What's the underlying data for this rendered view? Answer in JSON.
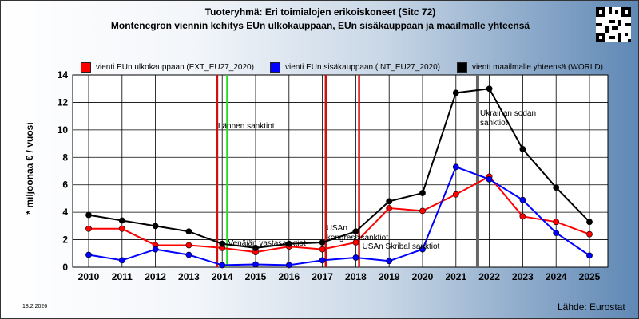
{
  "header": {
    "title_line1": "Tuoteryhmä: Eri toimialojen erikoiskoneet (Sitc 72)",
    "title_line2": "Montenegron viennin kehitys EUn ulkokauppaan, EUn sisäkauppaan ja maailmalle yhteensä"
  },
  "footer": {
    "date": "18.2.2026",
    "source": "Lähde: Eurostat"
  },
  "legend": [
    {
      "label": "vienti EUn ulkokauppaan (EXT_EU27_2020)",
      "color": "#ff0000"
    },
    {
      "label": "vienti EUn sisäkauppaan (INT_EU27_2020)",
      "color": "#0000ff"
    },
    {
      "label": "vienti maailmalle yhteensä (WORLD)",
      "color": "#000000"
    }
  ],
  "chart_data": {
    "type": "line",
    "ylabel": "* miljoonaa € / vuosi",
    "xlabel": "",
    "ylim": [
      0,
      14
    ],
    "yticks": [
      0,
      2,
      4,
      6,
      8,
      10,
      12,
      14
    ],
    "x": [
      "2010",
      "2011",
      "2012",
      "2013",
      "2014",
      "2015",
      "2016",
      "2017",
      "2018",
      "2019",
      "2020",
      "2021",
      "2022",
      "2023",
      "2024",
      "2025"
    ],
    "grid": true,
    "legend_position": "top",
    "series": [
      {
        "name": "vienti EUn ulkokauppaan (EXT_EU27_2020)",
        "color": "#ff0000",
        "values": [
          2.8,
          2.8,
          1.6,
          1.6,
          1.4,
          1.1,
          1.5,
          1.3,
          1.8,
          4.3,
          4.1,
          5.3,
          6.6,
          3.7,
          3.3,
          2.4
        ]
      },
      {
        "name": "vienti EUn sisäkauppaan (INT_EU27_2020)",
        "color": "#0000ff",
        "values": [
          0.9,
          0.5,
          1.3,
          0.9,
          0.15,
          0.2,
          0.15,
          0.5,
          0.7,
          0.45,
          1.3,
          7.3,
          6.4,
          4.9,
          2.5,
          0.85
        ]
      },
      {
        "name": "vienti maailmalle yhteensä (WORLD)",
        "color": "#000000",
        "values": [
          3.8,
          3.4,
          3.0,
          2.6,
          1.7,
          1.4,
          1.7,
          1.8,
          2.6,
          4.8,
          5.4,
          12.7,
          13.0,
          8.6,
          5.8,
          3.3
        ]
      }
    ],
    "annotations": [
      {
        "x": 2013.85,
        "color": "#d01010",
        "text": "Lännen sanktiot"
      },
      {
        "x": 2014.15,
        "color": "#22dd22",
        "text": ""
      },
      {
        "x": 2014.15,
        "color": "#000000",
        "text": "Venäjän vastasanktiot"
      },
      {
        "x": 2017.1,
        "color": "#d01010",
        "text": "USAn kongressisanktiot"
      },
      {
        "x": 2018.1,
        "color": "#d01010",
        "text": "USAn Skribal sanktiot"
      },
      {
        "x": 2021.65,
        "color": "#666666",
        "text": "Ukrainan sodan sanktiot"
      }
    ]
  }
}
